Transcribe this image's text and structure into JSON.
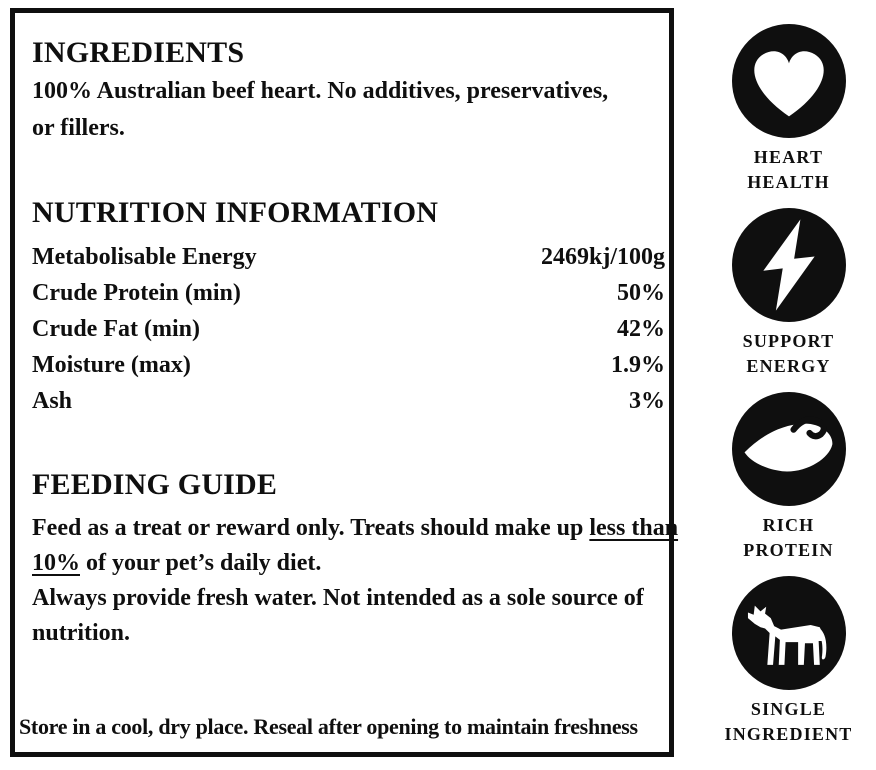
{
  "label": {
    "ingredients": {
      "heading": "INGREDIENTS",
      "lines": [
        "100% Australian beef heart. No additives, preservatives,",
        "or fillers."
      ]
    },
    "nutrition": {
      "heading": "NUTRITION INFORMATION",
      "rows": [
        {
          "name": "Metabolisable Energy",
          "value": "2469kj/100g"
        },
        {
          "name": "Crude Protein (min)",
          "value": "50%"
        },
        {
          "name": "Crude Fat (min)",
          "value": "42%"
        },
        {
          "name": "Moisture (max)",
          "value": "1.9%"
        },
        {
          "name": "Ash",
          "value": "3%"
        }
      ]
    },
    "feeding": {
      "heading": "FEEDING GUIDE",
      "lines": [
        [
          {
            "t": "Feed as a treat or reward only. Treats should make up "
          },
          {
            "t": "less than",
            "u": true
          }
        ],
        [
          {
            "t": "10%",
            "u": true
          },
          {
            "t": " of your pet’s daily diet."
          }
        ],
        [
          {
            "t": "Always provide fresh water. Not intended as a sole source of"
          }
        ],
        [
          {
            "t": "nutrition."
          }
        ]
      ]
    },
    "storage": "Store in a cool, dry place. Reseal after opening to maintain freshness"
  },
  "badges": [
    {
      "icon": "heart-icon",
      "line1": "HEART",
      "line2": "HEALTH"
    },
    {
      "icon": "energy-icon",
      "line1": "SUPPORT",
      "line2": "ENERGY"
    },
    {
      "icon": "protein-icon",
      "line1": "RICH",
      "line2": "PROTEIN"
    },
    {
      "icon": "cow-icon",
      "line1": "SINGLE",
      "line2": "INGREDIENT"
    }
  ],
  "colors": {
    "ink": "#0f0f0f",
    "paper": "#ffffff"
  }
}
